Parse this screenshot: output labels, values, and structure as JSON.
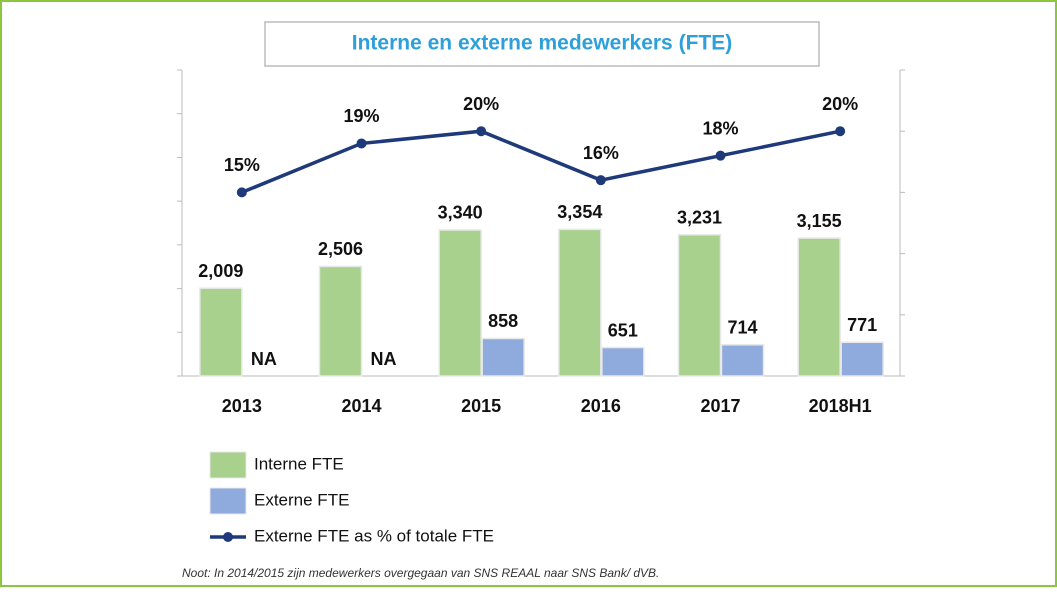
{
  "chart_data": {
    "type": "bar_line",
    "title": "Interne en externe medewerkers (FTE)",
    "categories": [
      "2013",
      "2014",
      "2015",
      "2016",
      "2017",
      "2018H1"
    ],
    "series": [
      {
        "name": "Interne FTE",
        "type": "bar",
        "color": "#a9d18e",
        "values": [
          2009,
          2506,
          3340,
          3354,
          3231,
          3155
        ],
        "value_labels": [
          "2,009",
          "2,506",
          "3,340",
          "3,354",
          "3,231",
          "3,155"
        ]
      },
      {
        "name": "Externe FTE",
        "type": "bar",
        "color": "#8faadc",
        "values": [
          null,
          null,
          858,
          651,
          714,
          771
        ],
        "value_labels": [
          "NA",
          "NA",
          "858",
          "651",
          "714",
          "771"
        ]
      },
      {
        "name": "Externe FTE as % of totale FTE",
        "type": "line",
        "axis": "y2",
        "color": "#1f3a7a",
        "values": [
          15,
          19,
          20,
          16,
          18,
          20
        ],
        "value_labels": [
          "15%",
          "19%",
          "20%",
          "16%",
          "18%",
          "20%"
        ]
      }
    ],
    "ylim": [
      0,
      7000
    ],
    "yticks": [
      0,
      1000,
      2000,
      3000,
      4000,
      5000,
      6000,
      7000
    ],
    "y2lim": [
      0,
      25
    ],
    "y2ticks": [
      0,
      5,
      10,
      15,
      20,
      25
    ],
    "note": "Noot: In 2014/2015 zijn medewerkers overgegaan van SNS REAAL naar SNS Bank/ dVB."
  }
}
